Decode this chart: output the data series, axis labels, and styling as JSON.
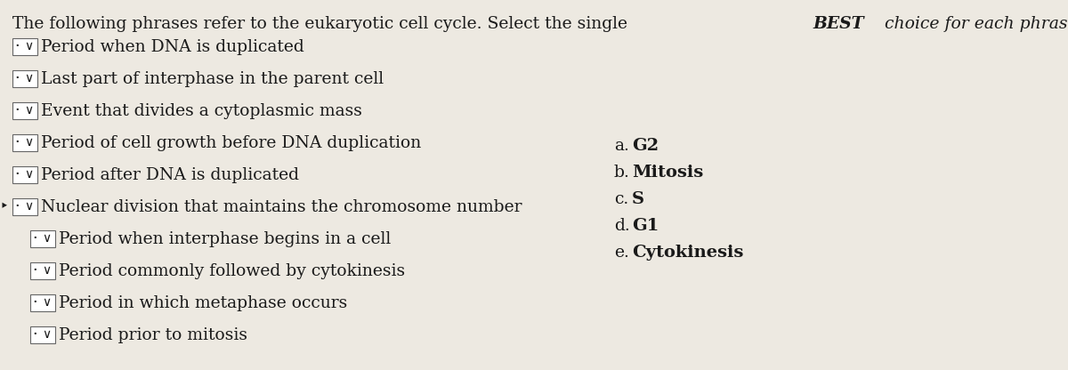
{
  "title_part1": "The following phrases refer to the eukaryotic cell cycle. Select the single ",
  "title_part2": "BEST",
  "title_part3": " choice for each phrase.",
  "background_color": "#ede9e1",
  "text_color": "#1a1a1a",
  "questions": [
    {
      "text": "Period when DNA is duplicated",
      "indent": 0
    },
    {
      "text": "Last part of interphase in the parent cell",
      "indent": 0
    },
    {
      "text": "Event that divides a cytoplasmic mass",
      "indent": 0
    },
    {
      "text": "Period of cell growth before DNA duplication",
      "indent": 0
    },
    {
      "text": "Period after DNA is duplicated",
      "indent": 0
    },
    {
      "text": "Nuclear division that maintains the chromosome number",
      "indent": 0,
      "bullet": true
    },
    {
      "text": "Period when interphase begins in a cell",
      "indent": 1
    },
    {
      "text": "Period commonly followed by cytokinesis",
      "indent": 1
    },
    {
      "text": "Period in which metaphase occurs",
      "indent": 1
    },
    {
      "text": "Period prior to mitosis",
      "indent": 1
    }
  ],
  "answers": [
    "a. G2",
    "b. Mitosis",
    "c. S",
    "d. G1",
    "e. Cytokinesis"
  ],
  "title_fontsize": 13.5,
  "q_fontsize": 13.5,
  "ans_fontsize": 13.5
}
